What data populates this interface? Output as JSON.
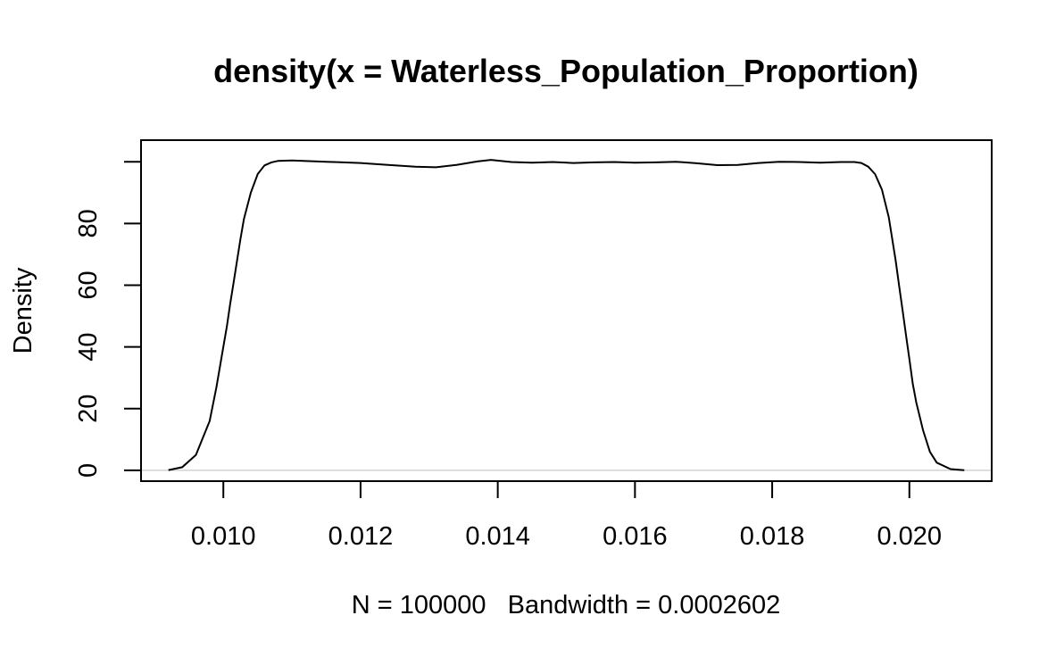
{
  "chart_data": {
    "type": "line",
    "title": "density(x = Waterless_Population_Proportion)",
    "xlabel": "N = 100000   Bandwidth = 0.0002602",
    "ylabel": "Density",
    "xlim": [
      0.0088,
      0.0212
    ],
    "ylim": [
      -3.5,
      107
    ],
    "x_ticks": [
      0.01,
      0.012,
      0.014,
      0.016,
      0.018,
      0.02
    ],
    "x_tick_labels": [
      "0.010",
      "0.012",
      "0.014",
      "0.016",
      "0.018",
      "0.020"
    ],
    "y_ticks": [
      0,
      20,
      40,
      60,
      80,
      100
    ],
    "y_tick_labels": [
      "0",
      "20",
      "40",
      "60",
      "80",
      ""
    ],
    "reference_line_y": 0,
    "grid": false,
    "series": [
      {
        "x": [
          0.0092,
          0.0094,
          0.0096,
          0.0098,
          0.0099,
          0.01,
          0.01005,
          0.0101,
          0.01015,
          0.0102,
          0.01025,
          0.0103,
          0.0104,
          0.0105,
          0.0106,
          0.0107,
          0.0108,
          0.011,
          0.0115,
          0.012,
          0.0124,
          0.0128,
          0.0131,
          0.0134,
          0.0137,
          0.0139,
          0.0142,
          0.0145,
          0.0148,
          0.0151,
          0.0154,
          0.0157,
          0.016,
          0.0163,
          0.0166,
          0.0169,
          0.0172,
          0.0175,
          0.0178,
          0.0181,
          0.0184,
          0.0187,
          0.019,
          0.0192,
          0.0193,
          0.0194,
          0.0195,
          0.0196,
          0.0197,
          0.0198,
          0.01985,
          0.0199,
          0.01995,
          0.02,
          0.02005,
          0.0201,
          0.0202,
          0.0203,
          0.0204,
          0.0206,
          0.0208
        ],
        "y": [
          0.1,
          1.0,
          5.0,
          16.0,
          27.0,
          40.0,
          46.5,
          54.0,
          61.0,
          68.0,
          75.0,
          81.5,
          90.0,
          96.0,
          98.8,
          99.8,
          100.3,
          100.4,
          100.0,
          99.6,
          99.0,
          98.4,
          98.2,
          99.0,
          100.1,
          100.6,
          99.9,
          99.7,
          99.9,
          99.6,
          99.8,
          99.9,
          99.7,
          99.8,
          100.0,
          99.5,
          98.9,
          99.0,
          99.6,
          100.0,
          99.9,
          99.7,
          99.9,
          99.9,
          99.6,
          98.4,
          96.0,
          91.0,
          82.0,
          68.0,
          60.0,
          52.0,
          44.0,
          36.0,
          28.0,
          22.0,
          13.0,
          6.0,
          2.5,
          0.4,
          0.05
        ]
      }
    ]
  }
}
